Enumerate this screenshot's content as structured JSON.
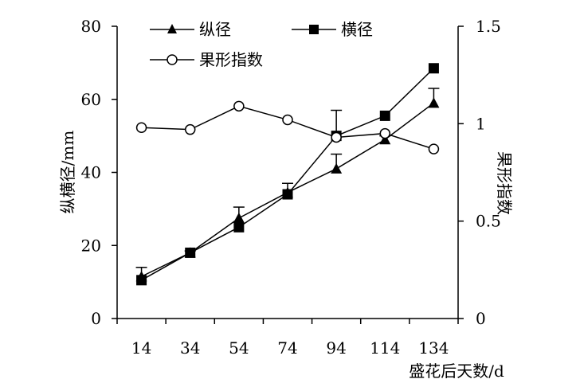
{
  "chart_data": {
    "type": "line",
    "x": [
      14,
      34,
      54,
      74,
      94,
      114,
      134
    ],
    "xlabel": "盛花后天数/d",
    "ylabel_left": "纵横径/mm",
    "ylabel_right": "果形指数",
    "ylim_left": [
      0,
      80
    ],
    "ylim_right": [
      0,
      1.5
    ],
    "yticks_left": [
      "0",
      "20",
      "40",
      "60",
      "80"
    ],
    "yticks_right": [
      "0",
      "0.5",
      "1",
      "1.5"
    ],
    "xticks": [
      "14",
      "34",
      "54",
      "74",
      "94",
      "114",
      "134"
    ],
    "grid": false,
    "legend_placement": "top",
    "series": [
      {
        "name": "纵径",
        "axis": "left",
        "marker": "triangle",
        "values": [
          11.5,
          18,
          27.5,
          34.5,
          41,
          49,
          59
        ],
        "error_plus": [
          2.5,
          0.5,
          3,
          2.5,
          4,
          1,
          4
        ]
      },
      {
        "name": "横径",
        "axis": "left",
        "marker": "square",
        "values": [
          10.5,
          18,
          25,
          34,
          50,
          55.5,
          68.5
        ],
        "error_plus": [
          0,
          0,
          0,
          0,
          7,
          0,
          0
        ]
      },
      {
        "name": "果形指数",
        "axis": "right",
        "marker": "open-circle",
        "values": [
          0.98,
          0.97,
          1.09,
          1.02,
          0.93,
          0.95,
          0.87
        ],
        "error_plus": [
          0,
          0,
          0,
          0,
          0,
          0,
          0
        ]
      }
    ]
  }
}
